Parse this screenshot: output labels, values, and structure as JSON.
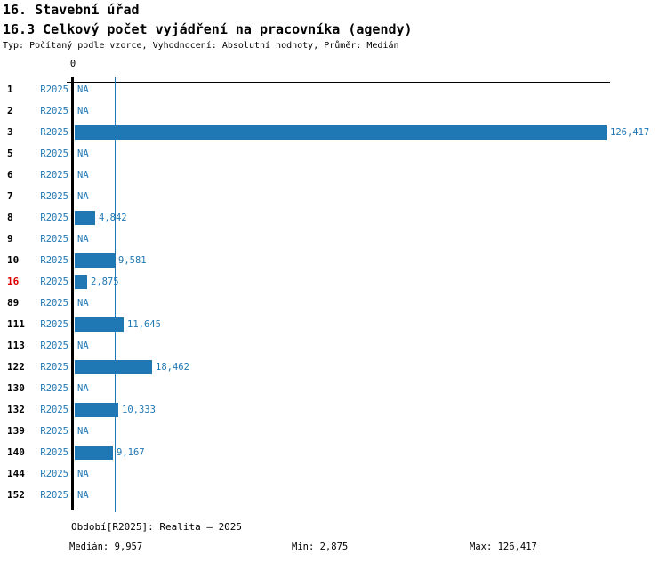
{
  "header": {
    "title": "16. Stavební úřad",
    "subtitle": "16.3 Celkový počet vyjádření na pracovníka (agendy)",
    "meta": "Typ: Počítaný podle vzorce, Vyhodnocení: Absolutní hodnoty, Průměr: Medián"
  },
  "chart_data": {
    "type": "bar",
    "orientation": "horizontal",
    "title": "16.3 Celkový počet vyjádření na pracovníka (agendy)",
    "x_axis": {
      "zero_tick_label": "0",
      "x_min": 0,
      "x_max": 127000,
      "ticks_visible": [
        "0"
      ]
    },
    "median_reference_line": {
      "value": 9957,
      "color": "#1f77b4"
    },
    "series_period": "R2025",
    "categories": [
      "1",
      "2",
      "3",
      "5",
      "6",
      "7",
      "8",
      "9",
      "10",
      "16",
      "89",
      "111",
      "113",
      "122",
      "130",
      "132",
      "139",
      "140",
      "144",
      "152"
    ],
    "rows": [
      {
        "id": "1",
        "period": "R2025",
        "value": null,
        "value_label": "NA",
        "highlight": false
      },
      {
        "id": "2",
        "period": "R2025",
        "value": null,
        "value_label": "NA",
        "highlight": false
      },
      {
        "id": "3",
        "period": "R2025",
        "value": 126417,
        "value_label": "126,417",
        "highlight": false
      },
      {
        "id": "5",
        "period": "R2025",
        "value": null,
        "value_label": "NA",
        "highlight": false
      },
      {
        "id": "6",
        "period": "R2025",
        "value": null,
        "value_label": "NA",
        "highlight": false
      },
      {
        "id": "7",
        "period": "R2025",
        "value": null,
        "value_label": "NA",
        "highlight": false
      },
      {
        "id": "8",
        "period": "R2025",
        "value": 4842,
        "value_label": "4,842",
        "highlight": false
      },
      {
        "id": "9",
        "period": "R2025",
        "value": null,
        "value_label": "NA",
        "highlight": false
      },
      {
        "id": "10",
        "period": "R2025",
        "value": 9581,
        "value_label": "9,581",
        "highlight": false
      },
      {
        "id": "16",
        "period": "R2025",
        "value": 2875,
        "value_label": "2,875",
        "highlight": true
      },
      {
        "id": "89",
        "period": "R2025",
        "value": null,
        "value_label": "NA",
        "highlight": false
      },
      {
        "id": "111",
        "period": "R2025",
        "value": 11645,
        "value_label": "11,645",
        "highlight": false
      },
      {
        "id": "113",
        "period": "R2025",
        "value": null,
        "value_label": "NA",
        "highlight": false
      },
      {
        "id": "122",
        "period": "R2025",
        "value": 18462,
        "value_label": "18,462",
        "highlight": false
      },
      {
        "id": "130",
        "period": "R2025",
        "value": null,
        "value_label": "NA",
        "highlight": false
      },
      {
        "id": "132",
        "period": "R2025",
        "value": 10333,
        "value_label": "10,333",
        "highlight": false
      },
      {
        "id": "139",
        "period": "R2025",
        "value": null,
        "value_label": "NA",
        "highlight": false
      },
      {
        "id": "140",
        "period": "R2025",
        "value": 9167,
        "value_label": "9,167",
        "highlight": false
      },
      {
        "id": "144",
        "period": "R2025",
        "value": null,
        "value_label": "NA",
        "highlight": false
      },
      {
        "id": "152",
        "period": "R2025",
        "value": null,
        "value_label": "NA",
        "highlight": false
      }
    ],
    "colors": {
      "bar": "#1f77b4",
      "blue_text": "#1f77b4",
      "highlight_red": "#dd0000",
      "axis": "#000000"
    },
    "stats": {
      "median": 9957,
      "min": 2875,
      "max": 126417
    }
  },
  "footer": {
    "period_line": "Období[R2025]: Realita – 2025",
    "median_label": "Medián: 9,957",
    "min_label": "Min: 2,875",
    "max_label": "Max: 126,417"
  }
}
